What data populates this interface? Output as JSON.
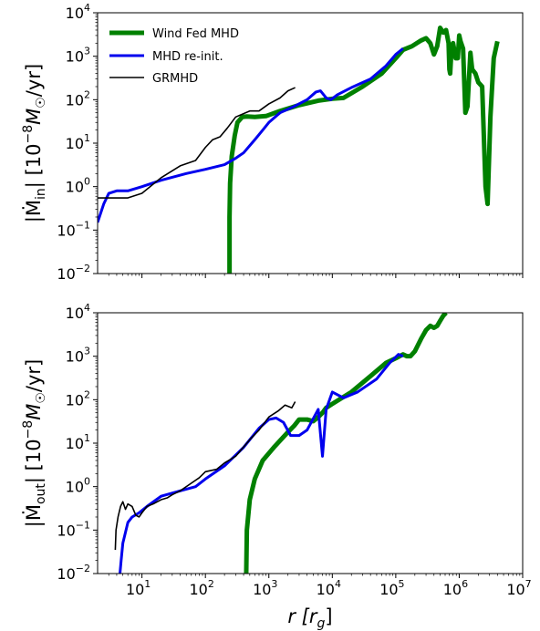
{
  "chart_data": [
    {
      "type": "line",
      "panel": "top",
      "ylabel_main": "|Ṁ",
      "ylabel_sub": "in",
      "ylabel_units": "| [10",
      "ylabel_exp": "−8",
      "ylabel_tail": "M",
      "ylabel_tail2": "/yr]",
      "x_scale": "log",
      "y_scale": "log",
      "xlim": [
        2,
        10000000
      ],
      "ylim": [
        0.01,
        10000
      ],
      "legend_position": "top-left",
      "series": [
        {
          "name": "Wind Fed MHD",
          "color": "#008000",
          "width": 5,
          "points": [
            [
              240,
              0.01
            ],
            [
              240,
              0.2
            ],
            [
              245,
              1.2
            ],
            [
              260,
              5
            ],
            [
              290,
              15
            ],
            [
              320,
              30
            ],
            [
              380,
              40
            ],
            [
              450,
              41
            ],
            [
              600,
              40
            ],
            [
              900,
              42
            ],
            [
              1500,
              55
            ],
            [
              3000,
              75
            ],
            [
              6000,
              95
            ],
            [
              10000,
              105
            ],
            [
              15000,
              110
            ],
            [
              30000,
              200
            ],
            [
              60000,
              400
            ],
            [
              100000,
              900
            ],
            [
              130000,
              1400
            ],
            [
              180000,
              1700
            ],
            [
              250000,
              2300
            ],
            [
              300000,
              2600
            ],
            [
              350000,
              2000
            ],
            [
              400000,
              1100
            ],
            [
              450000,
              1700
            ],
            [
              500000,
              4500
            ],
            [
              560000,
              3500
            ],
            [
              620000,
              4000
            ],
            [
              680000,
              2000
            ],
            [
              700000,
              500
            ],
            [
              720000,
              400
            ],
            [
              750000,
              1200
            ],
            [
              800000,
              2000
            ],
            [
              880000,
              900
            ],
            [
              950000,
              900
            ],
            [
              1000000,
              3000
            ],
            [
              1050000,
              2200
            ],
            [
              1150000,
              1500
            ],
            [
              1250000,
              50
            ],
            [
              1350000,
              70
            ],
            [
              1500000,
              1200
            ],
            [
              1600000,
              500
            ],
            [
              1800000,
              400
            ],
            [
              2000000,
              250
            ],
            [
              2300000,
              200
            ],
            [
              2600000,
              1
            ],
            [
              2800000,
              0.4
            ],
            [
              3100000,
              40
            ],
            [
              3500000,
              900
            ],
            [
              4000000,
              2200
            ]
          ]
        },
        {
          "name": "MHD re-init.",
          "color": "#0000ee",
          "width": 3,
          "points": [
            [
              2,
              0.15
            ],
            [
              2.5,
              0.4
            ],
            [
              3,
              0.7
            ],
            [
              4,
              0.8
            ],
            [
              6,
              0.8
            ],
            [
              10,
              1.0
            ],
            [
              20,
              1.4
            ],
            [
              50,
              2
            ],
            [
              100,
              2.5
            ],
            [
              200,
              3.2
            ],
            [
              300,
              4.5
            ],
            [
              400,
              6
            ],
            [
              600,
              12
            ],
            [
              800,
              20
            ],
            [
              1000,
              30
            ],
            [
              1500,
              50
            ],
            [
              2500,
              70
            ],
            [
              4000,
              100
            ],
            [
              5500,
              150
            ],
            [
              6500,
              160
            ],
            [
              8000,
              110
            ],
            [
              9500,
              100
            ],
            [
              12000,
              130
            ],
            [
              20000,
              190
            ],
            [
              40000,
              300
            ],
            [
              70000,
              600
            ],
            [
              100000,
              1100
            ],
            [
              130000,
              1500
            ]
          ]
        },
        {
          "name": "GRMHD",
          "color": "#000000",
          "width": 1.6,
          "points": [
            [
              2,
              0.55
            ],
            [
              4,
              0.55
            ],
            [
              6,
              0.55
            ],
            [
              10,
              0.7
            ],
            [
              20,
              1.6
            ],
            [
              40,
              3
            ],
            [
              70,
              4
            ],
            [
              100,
              8
            ],
            [
              130,
              12
            ],
            [
              170,
              14
            ],
            [
              220,
              22
            ],
            [
              300,
              40
            ],
            [
              500,
              55
            ],
            [
              700,
              55
            ],
            [
              1000,
              80
            ],
            [
              1500,
              110
            ],
            [
              2000,
              160
            ],
            [
              2600,
              190
            ]
          ]
        }
      ]
    },
    {
      "type": "line",
      "panel": "bottom",
      "ylabel_main": "|Ṁ",
      "ylabel_sub": "out",
      "ylabel_units": "| [10",
      "ylabel_exp": "−8",
      "ylabel_tail": "M",
      "ylabel_tail2": "/yr]",
      "xlabel": "r [r",
      "xlabel_sub": "g",
      "xlabel_tail": "]",
      "x_scale": "log",
      "y_scale": "log",
      "xlim": [
        2,
        10000000
      ],
      "ylim": [
        0.01,
        10000
      ],
      "series": [
        {
          "name": "Wind Fed MHD",
          "color": "#008000",
          "width": 5,
          "points": [
            [
              440,
              0.01
            ],
            [
              450,
              0.1
            ],
            [
              500,
              0.5
            ],
            [
              600,
              1.5
            ],
            [
              800,
              4
            ],
            [
              1200,
              8
            ],
            [
              2000,
              18
            ],
            [
              2500,
              25
            ],
            [
              3000,
              35
            ],
            [
              4000,
              35
            ],
            [
              5000,
              32
            ],
            [
              6000,
              40
            ],
            [
              7000,
              50
            ],
            [
              8000,
              65
            ],
            [
              10000,
              80
            ],
            [
              20000,
              150
            ],
            [
              40000,
              350
            ],
            [
              70000,
              700
            ],
            [
              100000,
              900
            ],
            [
              130000,
              1100
            ],
            [
              150000,
              1000
            ],
            [
              170000,
              1000
            ],
            [
              200000,
              1300
            ],
            [
              250000,
              2500
            ],
            [
              300000,
              4000
            ],
            [
              350000,
              5000
            ],
            [
              400000,
              4500
            ],
            [
              450000,
              5000
            ],
            [
              500000,
              6500
            ],
            [
              560000,
              8500
            ],
            [
              620000,
              10000
            ]
          ]
        },
        {
          "name": "MHD re-init.",
          "color": "#0000ee",
          "width": 3,
          "points": [
            [
              4.5,
              0.01
            ],
            [
              4.7,
              0.02
            ],
            [
              5,
              0.05
            ],
            [
              6,
              0.15
            ],
            [
              7,
              0.2
            ],
            [
              9,
              0.25
            ],
            [
              12,
              0.35
            ],
            [
              20,
              0.6
            ],
            [
              40,
              0.8
            ],
            [
              70,
              1.0
            ],
            [
              100,
              1.5
            ],
            [
              200,
              3
            ],
            [
              400,
              8
            ],
            [
              700,
              22
            ],
            [
              1000,
              35
            ],
            [
              1300,
              38
            ],
            [
              1700,
              30
            ],
            [
              2200,
              15
            ],
            [
              3000,
              15
            ],
            [
              4000,
              20
            ],
            [
              6000,
              60
            ],
            [
              7000,
              5
            ],
            [
              8000,
              60
            ],
            [
              10000,
              150
            ],
            [
              15000,
              110
            ],
            [
              25000,
              150
            ],
            [
              50000,
              300
            ],
            [
              80000,
              700
            ],
            [
              110000,
              1100
            ],
            [
              130000,
              1000
            ]
          ]
        },
        {
          "name": "GRMHD",
          "color": "#000000",
          "width": 1.6,
          "points": [
            [
              3.8,
              0.035
            ],
            [
              3.9,
              0.1
            ],
            [
              4.2,
              0.2
            ],
            [
              4.6,
              0.35
            ],
            [
              5,
              0.45
            ],
            [
              5.5,
              0.3
            ],
            [
              6,
              0.4
            ],
            [
              7,
              0.35
            ],
            [
              8,
              0.22
            ],
            [
              9,
              0.2
            ],
            [
              10,
              0.25
            ],
            [
              12,
              0.35
            ],
            [
              15,
              0.4
            ],
            [
              20,
              0.5
            ],
            [
              25,
              0.55
            ],
            [
              30,
              0.65
            ],
            [
              40,
              0.8
            ],
            [
              60,
              1.2
            ],
            [
              80,
              1.6
            ],
            [
              100,
              2.2
            ],
            [
              150,
              2.5
            ],
            [
              200,
              3.5
            ],
            [
              300,
              5
            ],
            [
              500,
              12
            ],
            [
              700,
              20
            ],
            [
              1000,
              40
            ],
            [
              1400,
              55
            ],
            [
              1800,
              75
            ],
            [
              2300,
              65
            ],
            [
              2600,
              90
            ]
          ]
        }
      ]
    }
  ],
  "legend": {
    "entries": [
      "Wind Fed MHD",
      "MHD re-init.",
      "GRMHD"
    ]
  }
}
